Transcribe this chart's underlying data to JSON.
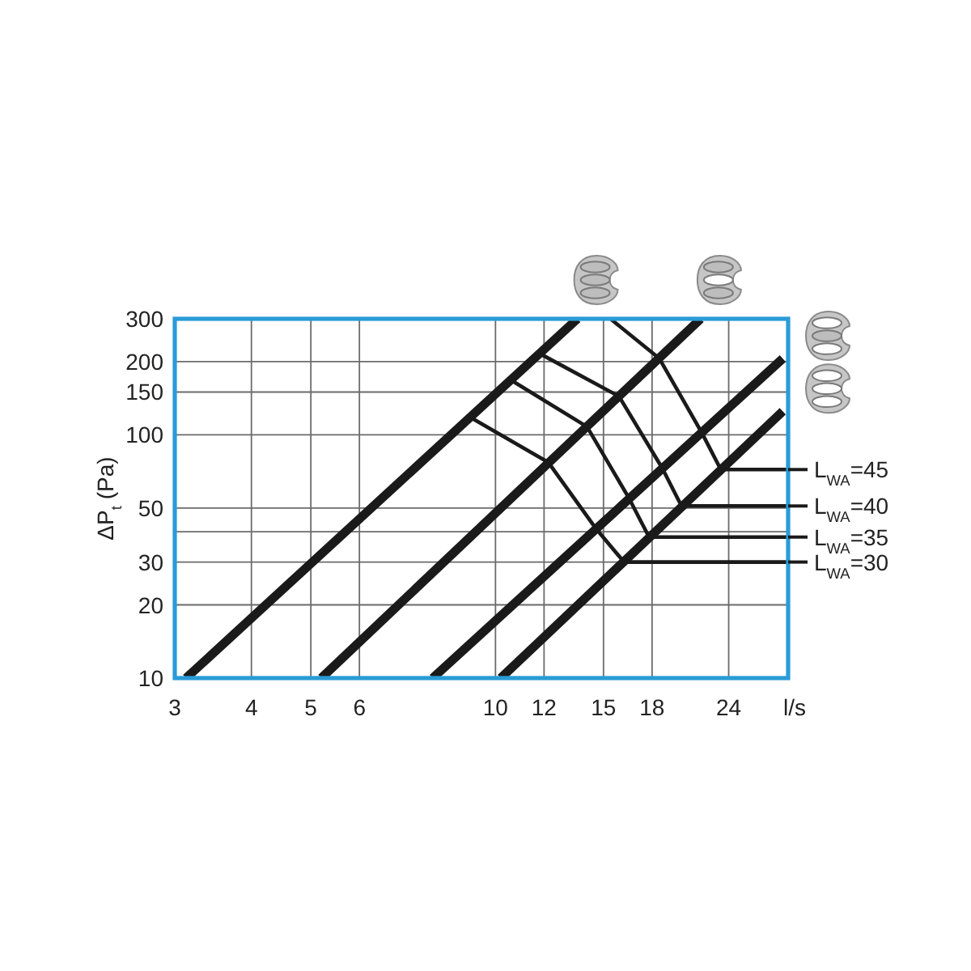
{
  "chart_data": {
    "type": "line",
    "xlabel": "l/s",
    "ylabel": "ΔP$_{t}$ (Pa)",
    "log": "xy",
    "xlim": [
      3,
      30
    ],
    "ylim": [
      10,
      300
    ],
    "xticks": [
      3,
      4,
      5,
      6,
      10,
      12,
      15,
      18,
      24
    ],
    "yticks": [
      10,
      20,
      30,
      {
        "value": 40,
        "label": null
      },
      50,
      100,
      150,
      200,
      300
    ],
    "grid": true,
    "legend": "right",
    "series": [
      {
        "color": "#1a1a1a",
        "x": [
          3.13,
          13.6
        ],
        "values": [
          10,
          300
        ]
      },
      {
        "color": "#1a1a1a",
        "x": [
          5.2,
          21.6
        ],
        "values": [
          10,
          300
        ]
      },
      {
        "color": "#1a1a1a",
        "x": [
          7.9,
          29.4
        ],
        "values": [
          10,
          206
        ]
      },
      {
        "color": "#1a1a1a",
        "x": [
          10.2,
          29.4
        ],
        "values": [
          10,
          125
        ]
      },
      {
        "name": "L$_{WA}$=45",
        "color": "#1a1a1a",
        "x": [
          15.4,
          18.5,
          21.7,
          23.3,
          30
        ],
        "values": [
          300,
          206,
          102,
          72,
          72
        ]
      },
      {
        "name": "L$_{WA}$=40",
        "color": "#1a1a1a",
        "x": [
          11.8,
          15.9,
          18.7,
          20.1,
          30
        ],
        "values": [
          216,
          144,
          73,
          51,
          51
        ]
      },
      {
        "name": "L$_{WA}$=35",
        "color": "#1a1a1a",
        "x": [
          10.6,
          14.1,
          16.5,
          17.8,
          30
        ],
        "values": [
          168,
          108,
          55,
          38,
          38
        ]
      },
      {
        "name": "L$_{WA}$=30",
        "color": "#1a1a1a",
        "x": [
          9.1,
          12.2,
          14.6,
          16.2,
          30
        ],
        "values": [
          118,
          77,
          41,
          30,
          30
        ]
      }
    ]
  }
}
